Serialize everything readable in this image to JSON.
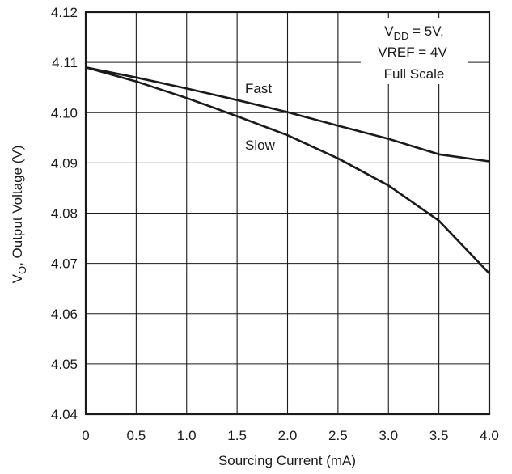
{
  "chart_data": {
    "type": "line",
    "xlabel": "Sourcing Current (mA)",
    "ylabel": {
      "main": "V",
      "sub": "O",
      "rest": ", Output Voltage (V)"
    },
    "x_ticks": [
      "0",
      "0.5",
      "1.0",
      "1.5",
      "2.0",
      "2.5",
      "3.0",
      "3.5",
      "4.0"
    ],
    "y_ticks": [
      "4.04",
      "4.05",
      "4.06",
      "4.07",
      "4.08",
      "4.09",
      "4.10",
      "4.11",
      "4.12"
    ],
    "xlim": [
      0,
      4
    ],
    "ylim": [
      4.04,
      4.12
    ],
    "grid": true,
    "annotation": {
      "line1": {
        "main": "V",
        "sub": "DD",
        "rest": " = 5V,"
      },
      "line2": "VREF = 4V",
      "line3": "Full Scale"
    },
    "series": [
      {
        "name": "Fast",
        "x": [
          0,
          0.5,
          1.0,
          1.5,
          2.0,
          2.5,
          3.0,
          3.5,
          4.0
        ],
        "y": [
          4.109,
          4.107,
          4.1048,
          4.1025,
          4.1001,
          4.0974,
          4.0948,
          4.0917,
          4.0903
        ]
      },
      {
        "name": "Slow",
        "x": [
          0,
          0.5,
          1.0,
          1.5,
          2.0,
          2.5,
          3.0,
          3.5,
          4.0
        ],
        "y": [
          4.109,
          4.1062,
          4.1029,
          4.0993,
          4.0955,
          4.0909,
          4.0855,
          4.0785,
          4.068
        ]
      }
    ],
    "colors": {
      "line": "#1a1a1a",
      "grid": "#1a1a1a"
    }
  }
}
